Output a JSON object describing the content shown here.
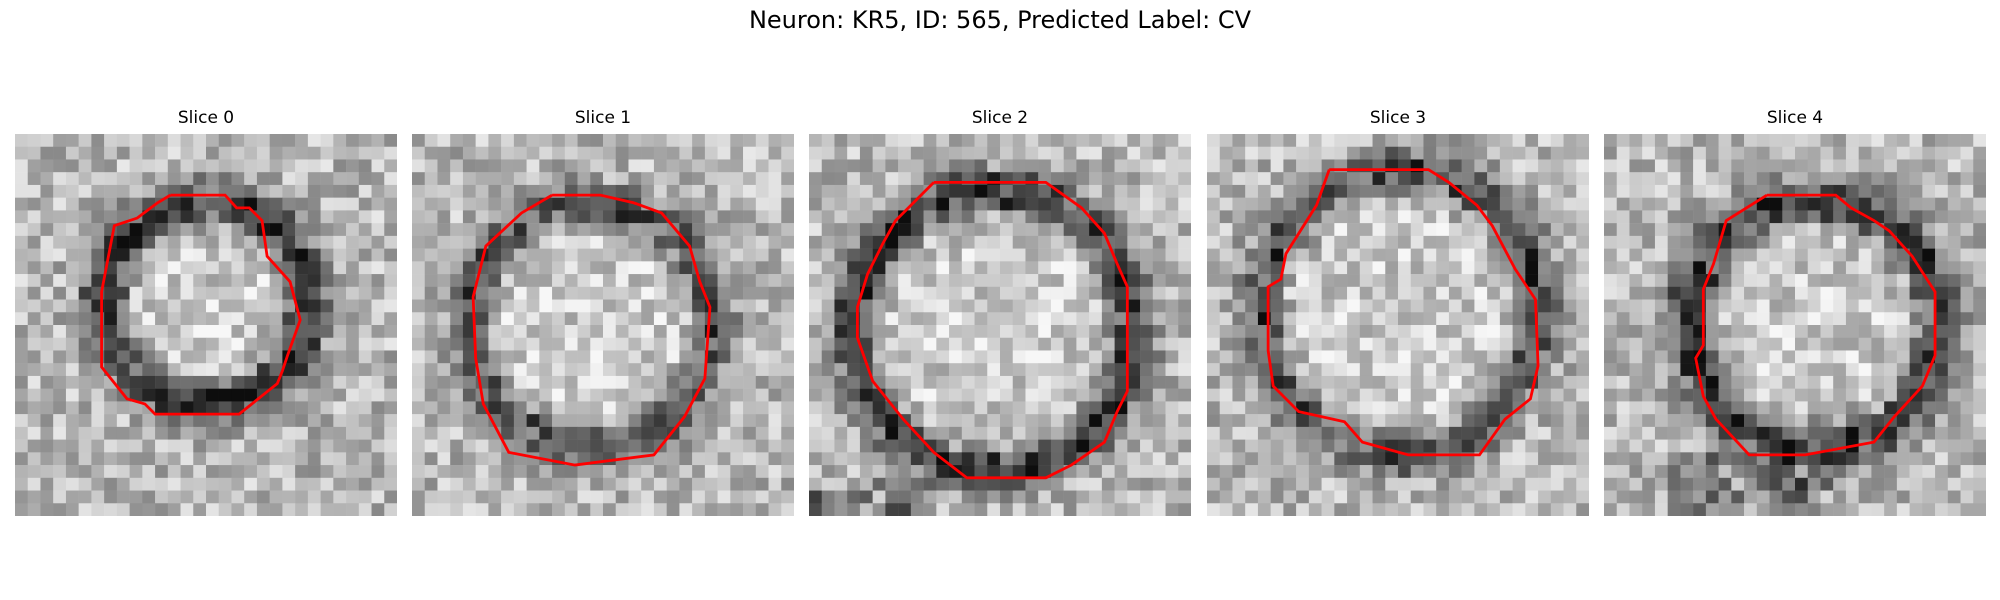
{
  "figure": {
    "title": "Neuron: KR5, ID: 565, Predicted Label: CV"
  },
  "panels": [
    {
      "title": "Slice 0",
      "contour_color": "#ff0000"
    },
    {
      "title": "Slice 1",
      "contour_color": "#ff0000"
    },
    {
      "title": "Slice 2",
      "contour_color": "#ff0000"
    },
    {
      "title": "Slice 3",
      "contour_color": "#ff0000"
    },
    {
      "title": "Slice 4",
      "contour_color": "#ff0000"
    }
  ]
}
